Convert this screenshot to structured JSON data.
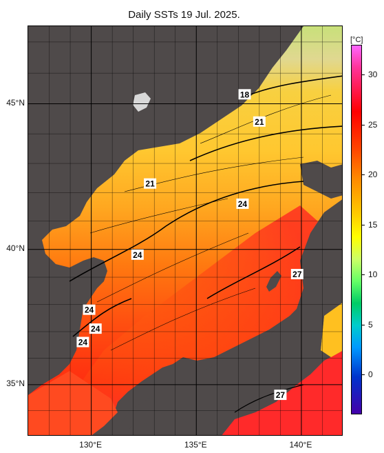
{
  "title": "Daily SSTs 19 Jul. 2025.",
  "map": {
    "lat_labels": [
      {
        "text": "45°N",
        "lat": 45
      },
      {
        "text": "40°N",
        "lat": 40
      },
      {
        "text": "35°N",
        "lat": 35
      }
    ],
    "lon_labels": [
      {
        "text": "130°E",
        "lon": 130
      },
      {
        "text": "135°E",
        "lon": 135
      },
      {
        "text": "140°E",
        "lon": 140
      }
    ],
    "contour_labels": [
      {
        "text": "18",
        "lon": 137.3,
        "lat": 45.3
      },
      {
        "text": "21",
        "lon": 138.0,
        "lat": 44.4
      },
      {
        "text": "21",
        "lon": 132.8,
        "lat": 42.3
      },
      {
        "text": "24",
        "lon": 137.2,
        "lat": 41.6
      },
      {
        "text": "24",
        "lon": 132.2,
        "lat": 39.8
      },
      {
        "text": "27",
        "lon": 139.8,
        "lat": 39.1
      },
      {
        "text": "24",
        "lon": 129.9,
        "lat": 37.8
      },
      {
        "text": "24",
        "lon": 130.2,
        "lat": 37.1
      },
      {
        "text": "24",
        "lon": 129.6,
        "lat": 36.6
      },
      {
        "text": "27",
        "lon": 139.0,
        "lat": 34.6
      }
    ],
    "colors": {
      "land": "#4f4a4a",
      "grid": "#000000"
    }
  },
  "colorbar": {
    "unit": "[°C]",
    "ticks": [
      {
        "text": "30",
        "value": 30
      },
      {
        "text": "25",
        "value": 25
      },
      {
        "text": "20",
        "value": 20
      },
      {
        "text": "15",
        "value": 15
      },
      {
        "text": "10",
        "value": 10
      },
      {
        "text": "5",
        "value": 5
      },
      {
        "text": "0",
        "value": 0
      }
    ]
  }
}
